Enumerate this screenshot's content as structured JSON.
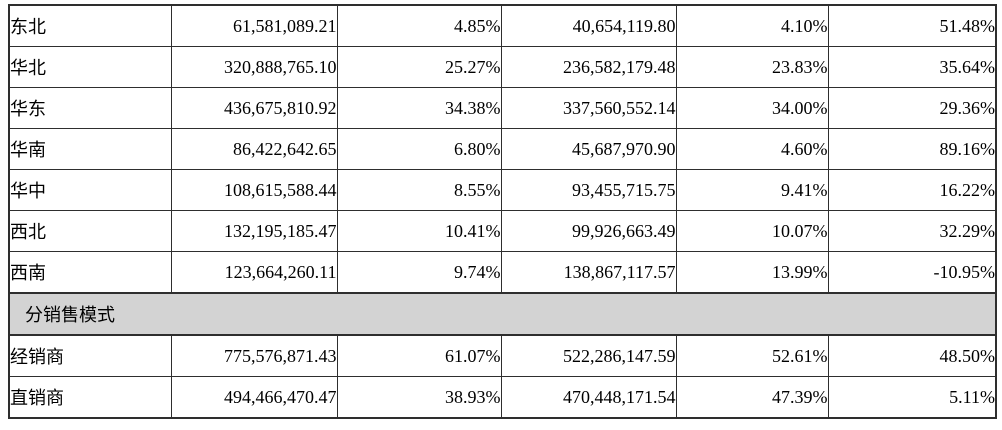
{
  "document": {
    "colors": {
      "section_row_background": "#d3d3d3",
      "border": "#2e2e2e",
      "page_background": "#ffffff",
      "text": "#000000"
    },
    "region_rows": [
      {
        "label": "东北",
        "values": [
          "61,581,089.21",
          "4.85%",
          "40,654,119.80",
          "4.10%",
          "51.48%"
        ]
      },
      {
        "label": "华北",
        "values": [
          "320,888,765.10",
          "25.27%",
          "236,582,179.48",
          "23.83%",
          "35.64%"
        ]
      },
      {
        "label": "华东",
        "values": [
          "436,675,810.92",
          "34.38%",
          "337,560,552.14",
          "34.00%",
          "29.36%"
        ]
      },
      {
        "label": "华南",
        "values": [
          "86,422,642.65",
          "6.80%",
          "45,687,970.90",
          "4.60%",
          "89.16%"
        ]
      },
      {
        "label": "华中",
        "values": [
          "108,615,588.44",
          "8.55%",
          "93,455,715.75",
          "9.41%",
          "16.22%"
        ]
      },
      {
        "label": "西北",
        "values": [
          "132,195,185.47",
          "10.41%",
          "99,926,663.49",
          "10.07%",
          "32.29%"
        ]
      },
      {
        "label": "西南",
        "values": [
          "123,664,260.11",
          "9.74%",
          "138,867,117.57",
          "13.99%",
          "-10.95%"
        ]
      }
    ],
    "section_header": "分销售模式",
    "mode_rows": [
      {
        "label": "经销商",
        "values": [
          "775,576,871.43",
          "61.07%",
          "522,286,147.59",
          "52.61%",
          "48.50%"
        ]
      },
      {
        "label": "直销商",
        "values": [
          "494,466,470.47",
          "38.93%",
          "470,448,171.54",
          "47.39%",
          "5.11%"
        ]
      }
    ]
  }
}
